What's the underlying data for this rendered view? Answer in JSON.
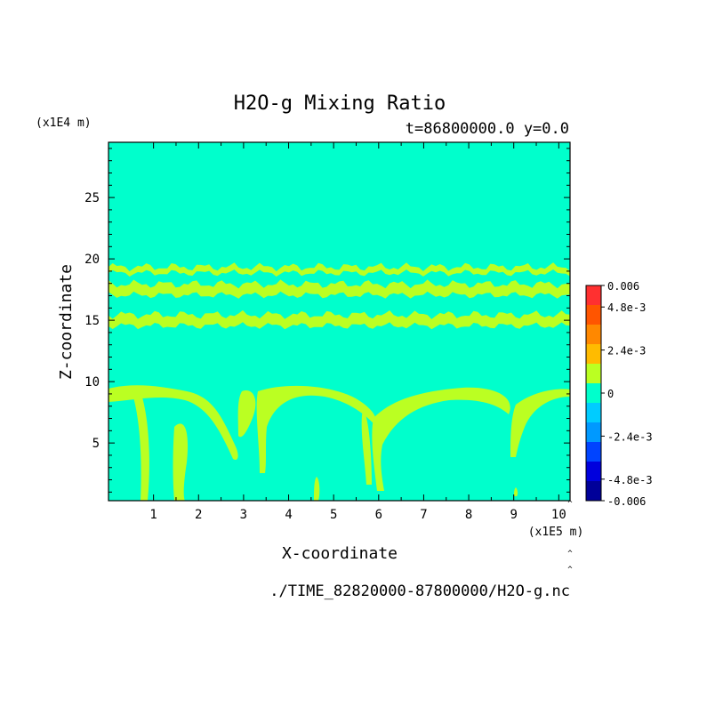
{
  "chart_data": {
    "type": "heatmap",
    "title": "H2O-g Mixing Ratio",
    "subtitle": "t=86800000.0 y=0.0",
    "xlabel": "X-coordinate",
    "ylabel": "Z-coordinate",
    "x_scale_label": "(x1E5 m)",
    "y_scale_label": "(x1E4 m)",
    "source_file": "./TIME_82820000-87800000/H2O-g.nc",
    "xlim": [
      0,
      10.25
    ],
    "ylim": [
      0.3,
      29.5
    ],
    "x_ticks": [
      1,
      2,
      3,
      4,
      5,
      6,
      7,
      8,
      9,
      10
    ],
    "x_tick_labels": [
      "1",
      "2",
      "3",
      "4",
      "5",
      "6",
      "7",
      "8",
      "9",
      "10"
    ],
    "y_ticks": [
      5,
      10,
      15,
      20,
      25
    ],
    "y_tick_labels": [
      "5",
      "10",
      "15",
      "20",
      "25"
    ],
    "background_color": "#00ffcc",
    "feature_color": "#bbff22",
    "layers": [
      {
        "z_center": 19.1,
        "half_width": 0.25
      },
      {
        "z_center": 17.5,
        "half_width": 0.45
      },
      {
        "z_center": 15.0,
        "half_width": 0.45
      }
    ],
    "colorbar": {
      "min": -0.006,
      "max": 0.006,
      "labels": [
        "0.006",
        "4.8e-3",
        "2.4e-3",
        "0",
        "-2.4e-3",
        "-4.8e-3",
        "-0.006"
      ],
      "label_values": [
        0.006,
        0.0048,
        0.0024,
        0,
        -0.0024,
        -0.0048,
        -0.006
      ],
      "colors": [
        "#ff3030",
        "#ff5500",
        "#ff8800",
        "#ffbb00",
        "#bbff22",
        "#00ffcc",
        "#00ccff",
        "#0099ff",
        "#0044ff",
        "#0000dd",
        "#000099"
      ]
    }
  }
}
